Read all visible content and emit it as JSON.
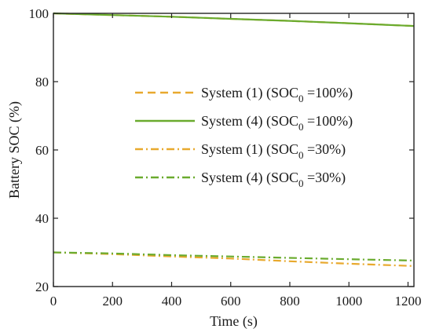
{
  "chart_data": {
    "type": "line",
    "title": "",
    "xlabel": "Time (s)",
    "ylabel": "Battery SOC (%)",
    "xlim": [
      0,
      1220
    ],
    "ylim": [
      20,
      100
    ],
    "xticks": [
      0,
      200,
      400,
      600,
      800,
      1000,
      1200
    ],
    "yticks": [
      20,
      40,
      60,
      80,
      100
    ],
    "grid": false,
    "legend_position": "center-right",
    "series": [
      {
        "name": "System (1) (SOC",
        "subscript": "0",
        "suffix": " =100%)",
        "color": "#e8a92e",
        "dash": "dashed",
        "x": [
          0,
          200,
          400,
          600,
          800,
          1000,
          1220
        ],
        "y": [
          100,
          99.5,
          99,
          98.4,
          97.8,
          97.1,
          96.3
        ]
      },
      {
        "name": "System (4) (SOC",
        "subscript": "0",
        "suffix": " =100%)",
        "color": "#6aab2e",
        "dash": "solid",
        "x": [
          0,
          200,
          400,
          600,
          800,
          1000,
          1220
        ],
        "y": [
          100,
          99.5,
          99,
          98.4,
          97.8,
          97.1,
          96.3
        ]
      },
      {
        "name": "System (1) (SOC",
        "subscript": "0",
        "suffix": " =30%)",
        "color": "#e8a92e",
        "dash": "dashdot",
        "x": [
          0,
          200,
          400,
          600,
          800,
          1000,
          1220
        ],
        "y": [
          30,
          29.5,
          28.8,
          28.2,
          27.4,
          26.7,
          26
        ]
      },
      {
        "name": "System (4) (SOC",
        "subscript": "0",
        "suffix": " =30%)",
        "color": "#6aab2e",
        "dash": "dashdot",
        "x": [
          0,
          200,
          400,
          600,
          800,
          1000,
          1220
        ],
        "y": [
          30,
          29.7,
          29.2,
          28.8,
          28.4,
          28,
          27.6
        ]
      }
    ]
  }
}
